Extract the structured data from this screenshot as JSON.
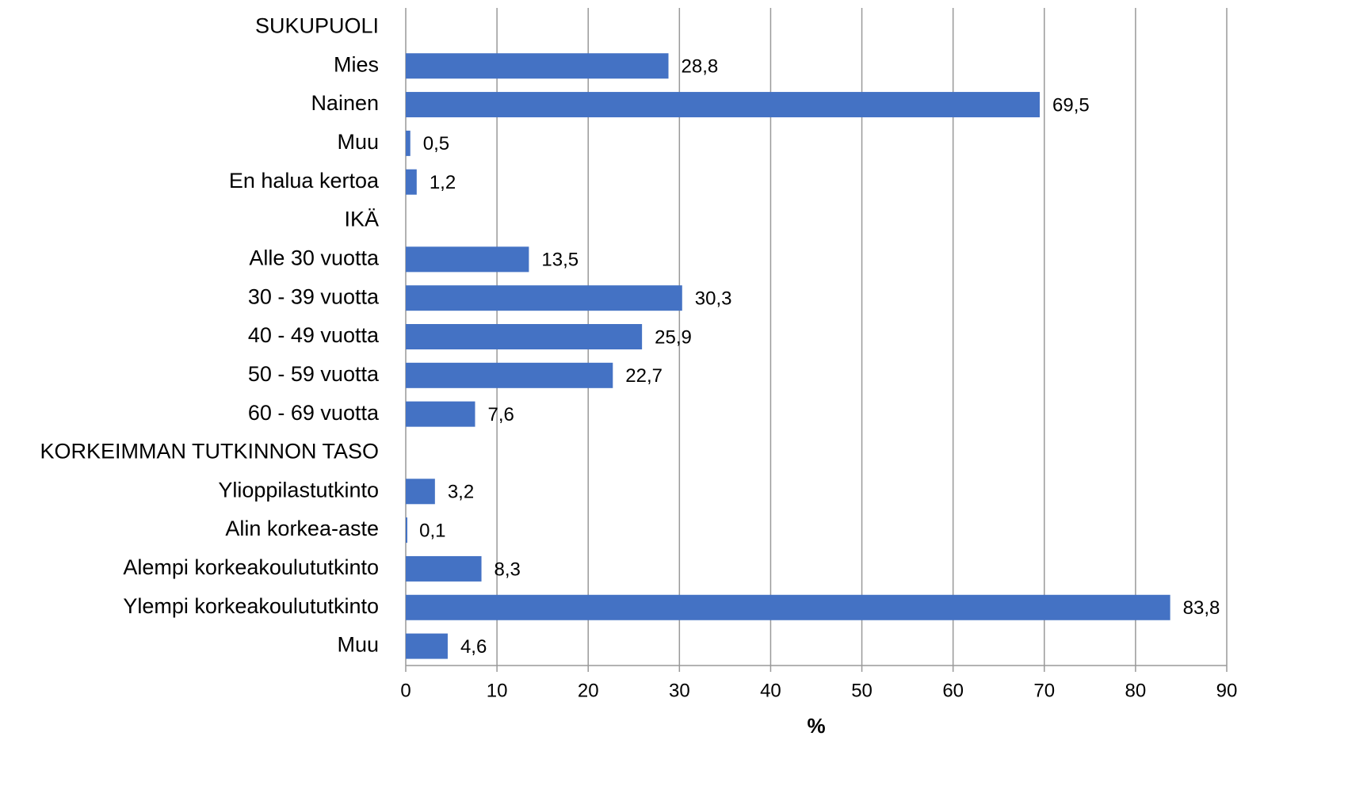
{
  "chart_data": {
    "type": "hbar",
    "x_label": "%",
    "categories": [
      "SUKUPUOLI",
      "Mies",
      "Nainen",
      "Muu",
      "En halua kertoa",
      "IKÄ",
      "Alle 30 vuotta",
      "30 - 39 vuotta",
      "40 - 49 vuotta",
      "50 - 59 vuotta",
      "60 - 69 vuotta",
      "KORKEIMMAN TUTKINNON TASO",
      "Ylioppilastutkinto",
      "Alin korkea-aste",
      "Alempi korkeakoulututkinto",
      "Ylempi korkeakoulututkinto",
      "Muu"
    ],
    "values": [
      null,
      28.8,
      69.5,
      0.5,
      1.2,
      null,
      13.5,
      30.3,
      25.9,
      22.7,
      7.6,
      null,
      3.2,
      0.1,
      8.3,
      83.8,
      4.6
    ],
    "value_labels": [
      null,
      "28,8",
      "69,5",
      "0,5",
      "1,2",
      null,
      "13,5",
      "30,3",
      "25,9",
      "22,7",
      "7,6",
      null,
      "3,2",
      "0,1",
      "8,3",
      "83,8",
      "4,6"
    ],
    "color": "#4472c4",
    "xlim": [
      0,
      90
    ],
    "xticks": [
      0,
      10,
      20,
      30,
      40,
      50,
      60,
      70,
      80,
      90
    ],
    "grid": true
  }
}
